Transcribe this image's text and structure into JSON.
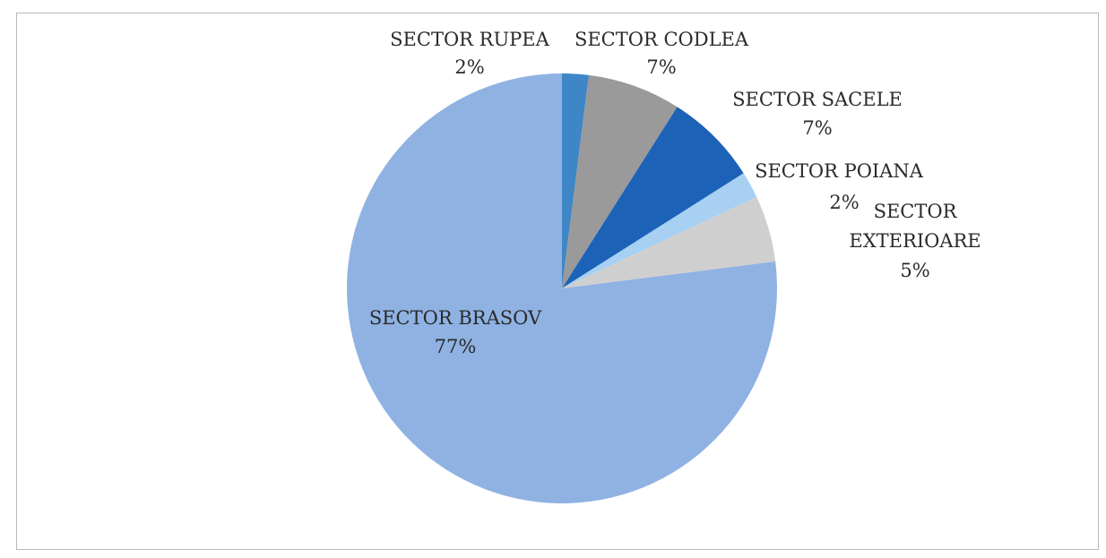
{
  "chart_data": {
    "type": "pie",
    "title": "",
    "slices": [
      {
        "label": "SECTOR RUPEA",
        "value": 2,
        "pct_label": "2%",
        "color": "#3f86c6"
      },
      {
        "label": "SECTOR CODLEA",
        "value": 7,
        "pct_label": "7%",
        "color": "#9a9a9a"
      },
      {
        "label": "SECTOR SACELE",
        "value": 7,
        "pct_label": "7%",
        "color": "#1c63b8"
      },
      {
        "label": "SECTOR POIANA",
        "value": 2,
        "pct_label": "2%",
        "color": "#a7d0f2"
      },
      {
        "label": "SECTOR EXTERIOARE",
        "value": 5,
        "pct_label": "5%",
        "color": "#cfcfcf"
      },
      {
        "label": "SECTOR BRASOV",
        "value": 77,
        "pct_label": "77%",
        "color": "#8fb2e3"
      }
    ],
    "legend": "none"
  }
}
